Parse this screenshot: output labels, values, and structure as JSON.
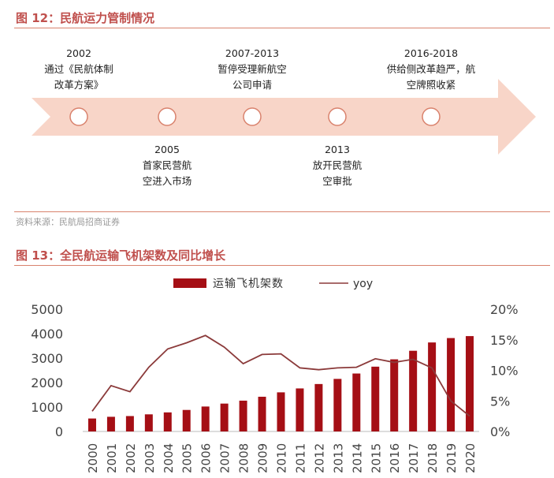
{
  "figure12": {
    "title": "图 12：民航运力管制情况",
    "events": [
      {
        "year": "2002",
        "text_lines": [
          "通过《民航体制",
          "改革方案》"
        ],
        "position": "above"
      },
      {
        "year": "2005",
        "text_lines": [
          "首家民营航",
          "空进入市场"
        ],
        "position": "below"
      },
      {
        "year": "2007-2013",
        "text_lines": [
          "暂停受理新航空",
          "公司申请"
        ],
        "position": "above"
      },
      {
        "year": "2013",
        "text_lines": [
          "放开民营航",
          "空审批"
        ],
        "position": "below"
      },
      {
        "year": "2016-2018",
        "text_lines": [
          "供给侧改革趋严，航",
          "空牌照收紧"
        ],
        "position": "above"
      }
    ],
    "source": "资料来源：民航局招商证券"
  },
  "figure13": {
    "title": "图 13：全民航运输飞机架数及同比增长"
  },
  "colors": {
    "bar": "#a50f15",
    "line": "#8b3a3a",
    "title": "#c0504d",
    "arrow": "#f8d5c8"
  },
  "chart_data": {
    "type": "bar",
    "legend_position": "top",
    "categories": [
      "2000",
      "2001",
      "2002",
      "2003",
      "2004",
      "2005",
      "2006",
      "2007",
      "2008",
      "2009",
      "2010",
      "2011",
      "2012",
      "2013",
      "2014",
      "2015",
      "2016",
      "2017",
      "2018",
      "2019",
      "2020"
    ],
    "series": [
      {
        "name": "运输飞机架数",
        "type": "bar",
        "axis": "left",
        "values": [
          530,
          600,
          630,
          700,
          780,
          880,
          1020,
          1140,
          1260,
          1420,
          1600,
          1760,
          1940,
          2150,
          2370,
          2650,
          2950,
          3300,
          3640,
          3820,
          3900
        ]
      },
      {
        "name": "yoy",
        "type": "line",
        "axis": "right",
        "values": [
          3.3,
          7.5,
          6.5,
          10.5,
          13.5,
          14.5,
          15.7,
          13.8,
          11.1,
          12.6,
          12.7,
          10.4,
          10.1,
          10.4,
          10.5,
          11.9,
          11.3,
          11.8,
          10.4,
          5.0,
          2.5
        ]
      }
    ],
    "y_left": {
      "min": 0,
      "max": 5000,
      "ticks": [
        "0",
        "1000",
        "2000",
        "3000",
        "4000",
        "5000"
      ]
    },
    "y_right": {
      "min": 0,
      "max": 20,
      "ticks": [
        "0%",
        "5%",
        "10%",
        "15%",
        "20%"
      ]
    },
    "grid": false
  }
}
